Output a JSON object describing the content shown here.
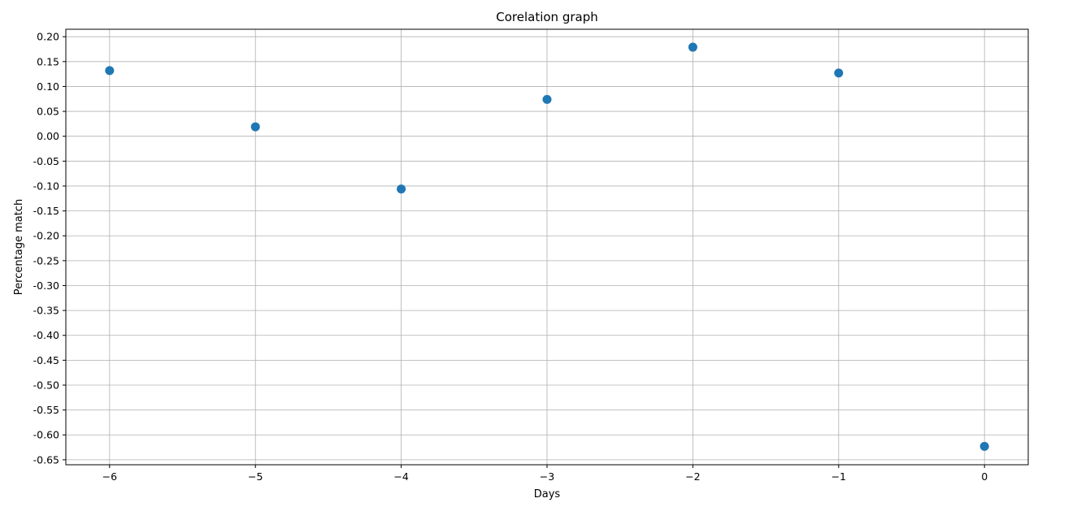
{
  "chart_data": {
    "type": "scatter",
    "title": "Corelation graph",
    "xlabel": "Days",
    "ylabel": "Percentage match",
    "x": [
      -6,
      -5,
      -4,
      -3,
      -2,
      -1,
      0
    ],
    "y": [
      0.132,
      0.019,
      -0.106,
      0.074,
      0.179,
      0.127,
      -0.623
    ],
    "xlim": [
      -6.3,
      0.3
    ],
    "ylim": [
      -0.66,
      0.215
    ],
    "xticks": [
      -6,
      -5,
      -4,
      -3,
      -2,
      -1,
      0
    ],
    "xtick_labels": [
      "−6",
      "−5",
      "−4",
      "−3",
      "−2",
      "−1",
      "0"
    ],
    "yticks": [
      0.2,
      0.15,
      0.1,
      0.05,
      0.0,
      -0.05,
      -0.1,
      -0.15,
      -0.2,
      -0.25,
      -0.3,
      -0.35,
      -0.4,
      -0.45,
      -0.5,
      -0.55,
      -0.6,
      -0.65
    ],
    "ytick_labels": [
      "0.20",
      "0.15",
      "0.10",
      "0.05",
      "0.00",
      "-0.05",
      "-0.10",
      "-0.15",
      "-0.20",
      "-0.25",
      "-0.30",
      "-0.35",
      "-0.40",
      "-0.45",
      "-0.50",
      "-0.55",
      "-0.60",
      "-0.65"
    ],
    "grid": true,
    "marker_color": "#1f77b4",
    "grid_color": "#b0b0b0"
  }
}
